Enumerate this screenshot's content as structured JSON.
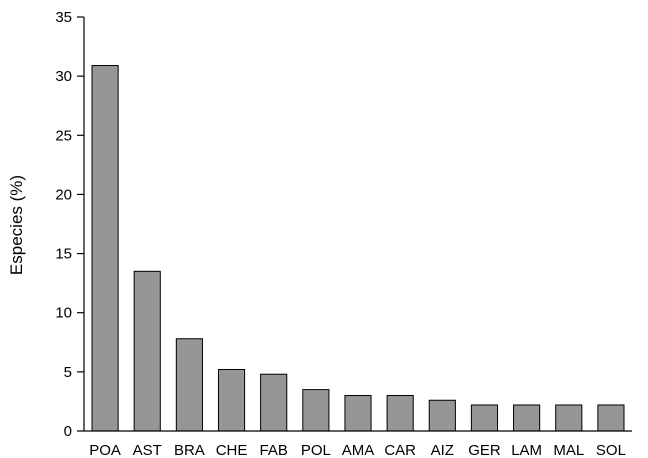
{
  "chart_data": {
    "type": "bar",
    "title": "",
    "xlabel": "",
    "ylabel": "Especies (%)",
    "categories": [
      "POA",
      "AST",
      "BRA",
      "CHE",
      "FAB",
      "POL",
      "AMA",
      "CAR",
      "AIZ",
      "GER",
      "LAM",
      "MAL",
      "SOL"
    ],
    "values": [
      30.9,
      13.5,
      7.8,
      5.2,
      4.8,
      3.5,
      3.0,
      3.0,
      2.6,
      2.2,
      2.2,
      2.2,
      2.2
    ],
    "ylim": [
      0,
      35
    ],
    "yticks": [
      0,
      5,
      10,
      15,
      20,
      25,
      30,
      35
    ],
    "ytick_labels": [
      "0",
      "5",
      "10",
      "15",
      "20",
      "25",
      "30",
      "35"
    ],
    "grid": false,
    "legend": "none",
    "colors": {
      "bar_fill": "#969696",
      "bar_stroke": "#000000",
      "axis": "#000000"
    }
  }
}
